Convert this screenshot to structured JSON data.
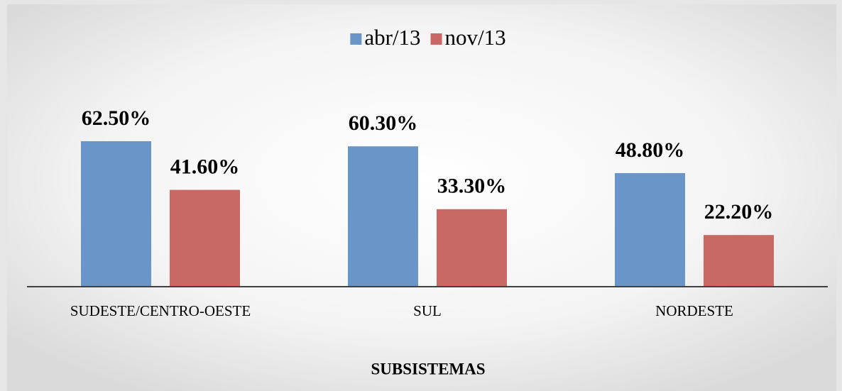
{
  "chart_data": {
    "type": "bar",
    "xlabel": "SUBSISTEMAS",
    "categories": [
      "SUDESTE/CENTRO-OESTE",
      "SUL",
      "NORDESTE"
    ],
    "series": [
      {
        "name": "abr/13",
        "color": "#6a95c8",
        "values": [
          62.5,
          60.3,
          48.8
        ],
        "value_labels": [
          "62.50%",
          "60.30%",
          "48.80%"
        ]
      },
      {
        "name": "nov/13",
        "color": "#c96966",
        "values": [
          41.6,
          33.3,
          22.2
        ],
        "value_labels": [
          "41.60%",
          "33.30%",
          "22.20%"
        ]
      }
    ],
    "legend": "top"
  }
}
